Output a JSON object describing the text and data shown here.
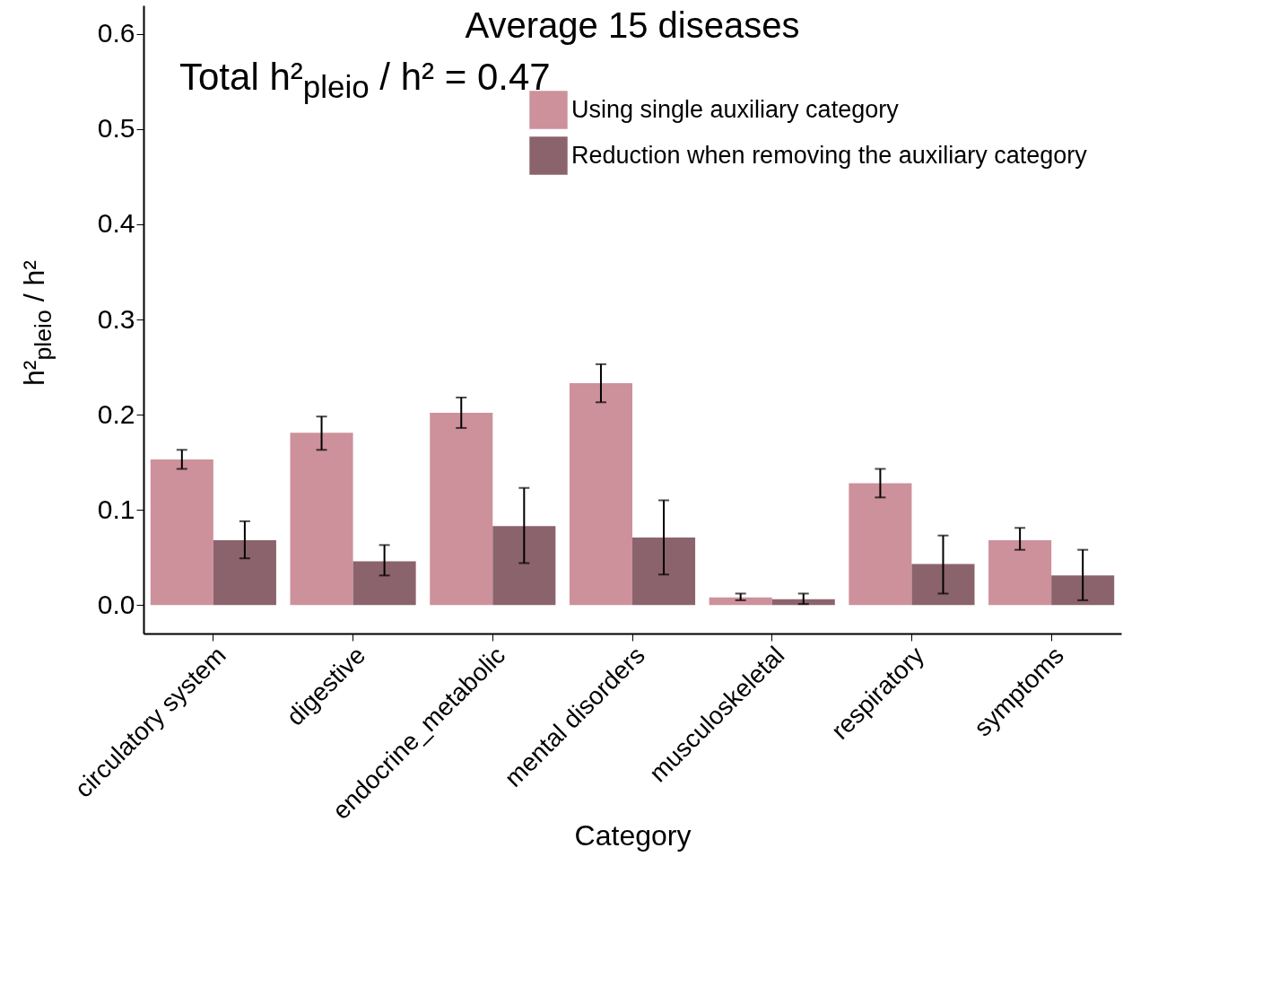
{
  "chart_data": {
    "type": "bar",
    "title": "Average 15 diseases",
    "xlabel": "Category",
    "ylabel": "h²$_{pleio}$ / h²",
    "annotations": [
      "Total h²$_{pleio}$ / h² = 0.47"
    ],
    "categories": [
      "circulatory system",
      "digestive",
      "endocrine_metabolic",
      "mental disorders",
      "musculoskeletal",
      "respiratory",
      "symptoms"
    ],
    "series": [
      {
        "name": "Using single auxiliary category",
        "color": "#cd919c",
        "values": [
          0.153,
          0.181,
          0.202,
          0.233,
          0.008,
          0.128,
          0.068
        ],
        "errors": [
          [
            0.143,
            0.163
          ],
          [
            0.163,
            0.198
          ],
          [
            0.186,
            0.218
          ],
          [
            0.213,
            0.253
          ],
          [
            0.005,
            0.012
          ],
          [
            0.113,
            0.143
          ],
          [
            0.058,
            0.081
          ]
        ]
      },
      {
        "name": "Reduction when removing the auxiliary category",
        "color": "#8b636c",
        "values": [
          0.068,
          0.046,
          0.083,
          0.071,
          0.006,
          0.043,
          0.031
        ],
        "errors": [
          [
            0.049,
            0.088
          ],
          [
            0.031,
            0.063
          ],
          [
            0.044,
            0.123
          ],
          [
            0.032,
            0.11
          ],
          [
            0.001,
            0.012
          ],
          [
            0.012,
            0.073
          ],
          [
            0.005,
            0.058
          ]
        ]
      }
    ],
    "ylim": [
      -0.03,
      0.63
    ],
    "yticks": [
      {
        "value": 0,
        "label": "0.0"
      },
      {
        "value": 0.1,
        "label": "0.1"
      },
      {
        "value": 0.2,
        "label": "0.2"
      },
      {
        "value": 0.3,
        "label": "0.3"
      },
      {
        "value": 0.4,
        "label": "0.4"
      },
      {
        "value": 0.5,
        "label": "0.5"
      },
      {
        "value": 0.6,
        "label": "0.6"
      }
    ],
    "grid": false,
    "legend": "top right"
  }
}
